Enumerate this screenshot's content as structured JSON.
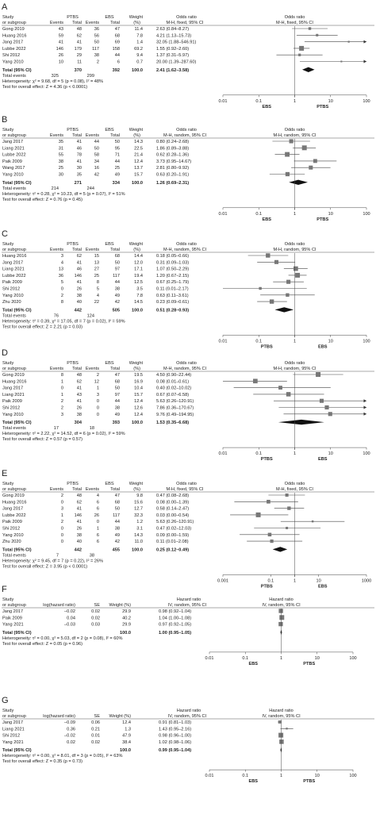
{
  "chart_data": [
    {
      "type": "forest",
      "panel": "A",
      "title": "",
      "col_study": [
        "Study",
        "or subgroup"
      ],
      "group1": "PTBS",
      "group2": "EBS",
      "col_events": "Events",
      "col_total": "Total",
      "col_weight": [
        "Weight",
        "(%)"
      ],
      "effect_head": [
        "Odds ratio",
        "M-H, fixed, 95% CI"
      ],
      "plot_head": [
        "Odds ratio",
        "M-H, fixed, 95% CI"
      ],
      "studies": [
        {
          "name": "Gong 2019",
          "e1": "43",
          "n1": "48",
          "e2": "36",
          "n2": "47",
          "w": "11.4",
          "ci": "2.63 (0.84–8.27)",
          "or": 2.63,
          "lo": 0.84,
          "hi": 8.27
        },
        {
          "name": "Huang 2016",
          "e1": "59",
          "n1": "62",
          "e2": "56",
          "n2": "68",
          "w": "7.8",
          "ci": "4.21 (1.13–15.73)",
          "or": 4.21,
          "lo": 1.13,
          "hi": 15.73
        },
        {
          "name": "Jang 2017",
          "e1": "41",
          "n1": "41",
          "e2": "50",
          "n2": "69",
          "w": "1.4",
          "ci": "32.05 (1.88–546.91)",
          "or": 32.05,
          "lo": 1.88,
          "hi": 546.91
        },
        {
          "name": "Lubbe 2022",
          "e1": "146",
          "n1": "179",
          "e2": "117",
          "n2": "158",
          "w": "69.2",
          "ci": "1.55 (0.92–2.60)",
          "or": 1.55,
          "lo": 0.92,
          "hi": 2.6
        },
        {
          "name": "Shi 2012",
          "e1": "26",
          "n1": "29",
          "e2": "38",
          "n2": "44",
          "w": "9.4",
          "ci": "1.37 (0.31–5.97)",
          "or": 1.37,
          "lo": 0.31,
          "hi": 5.97
        },
        {
          "name": "Yang 2010",
          "e1": "10",
          "n1": "11",
          "e2": "2",
          "n2": "6",
          "w": "0.7",
          "ci": "20.00 (1.39–287.60)",
          "or": 20.0,
          "lo": 1.39,
          "hi": 287.6
        }
      ],
      "total": {
        "label": "Total (95% CI)",
        "n1": "370",
        "n2": "392",
        "w": "100.0",
        "ci": "2.41 (1.62–3.58)",
        "or": 2.41,
        "lo": 1.62,
        "hi": 3.58
      },
      "total_events": {
        "label": "Total events",
        "e1": "325",
        "e2": "299"
      },
      "heterogeneity": "Heterogeneity: χ² = 9.68, df = 5 (p = 0.08), I² = 48%",
      "overall": "Test for overall effect: Z = 4.36 (p < 0.0001)",
      "ticks": [
        "0.01",
        "0.1",
        "1",
        "10",
        "100"
      ],
      "tick_values": [
        0.01,
        0.1,
        1,
        10,
        100
      ],
      "favours_left": "EBS",
      "favours_right": "PTBS"
    },
    {
      "type": "forest",
      "panel": "B",
      "title": "",
      "col_study": [
        "Study",
        "or subgroup"
      ],
      "group1": "PTBS",
      "group2": "EBS",
      "col_events": "Events",
      "col_total": "Total",
      "col_weight": [
        "Weight",
        "(%)"
      ],
      "effect_head": [
        "Odds ratio",
        "M-H, random, 95% CI"
      ],
      "plot_head": [
        "Odds ratio",
        "M-H, random, 95% CI"
      ],
      "studies": [
        {
          "name": "Jang 2017",
          "e1": "35",
          "n1": "41",
          "e2": "44",
          "n2": "50",
          "w": "14.3",
          "ci": "0.80 (0.24–2.68)",
          "or": 0.8,
          "lo": 0.24,
          "hi": 2.68
        },
        {
          "name": "Liang 2021",
          "e1": "31",
          "n1": "46",
          "e2": "50",
          "n2": "95",
          "w": "22.5",
          "ci": "1.86 (0.89–3.88)",
          "or": 1.86,
          "lo": 0.89,
          "hi": 3.88
        },
        {
          "name": "Lubbe 2022",
          "e1": "55",
          "n1": "78",
          "e2": "58",
          "n2": "71",
          "w": "21.4",
          "ci": "0.62 (0.28–1.36)",
          "or": 0.62,
          "lo": 0.28,
          "hi": 1.36
        },
        {
          "name": "Paik 2009",
          "e1": "38",
          "n1": "41",
          "e2": "34",
          "n2": "44",
          "w": "12.4",
          "ci": "3.73 (0.95–14.67)",
          "or": 3.73,
          "lo": 0.95,
          "hi": 14.67
        },
        {
          "name": "Wang 2017",
          "e1": "25",
          "n1": "30",
          "e2": "16",
          "n2": "25",
          "w": "13.7",
          "ci": "2.81 (0.80–9.92)",
          "or": 2.81,
          "lo": 0.8,
          "hi": 9.92
        },
        {
          "name": "Yang 2010",
          "e1": "30",
          "n1": "35",
          "e2": "42",
          "n2": "49",
          "w": "15.7",
          "ci": "0.63 (0.20–1.91)",
          "or": 0.63,
          "lo": 0.2,
          "hi": 1.91
        }
      ],
      "total": {
        "label": "Total (95% CI)",
        "n1": "271",
        "n2": "334",
        "w": "100.0",
        "ci": "1.26 (0.69–2.31)",
        "or": 1.26,
        "lo": 0.69,
        "hi": 2.31
      },
      "total_events": {
        "label": "Total events",
        "e1": "214",
        "e2": "244"
      },
      "heterogeneity": "Heterogeneity: τ² = 0.28, χ² = 10.23, df = 5 (p = 0.07), I² = 51%",
      "overall": "Test for overall effect: Z = 0.76 (p = 0.45)",
      "ticks": [
        "0.01",
        "0.1",
        "1",
        "10",
        "100"
      ],
      "tick_values": [
        0.01,
        0.1,
        1,
        10,
        100
      ],
      "favours_left": "EBS",
      "favours_right": "PTBS"
    },
    {
      "type": "forest",
      "panel": "C",
      "title": "",
      "col_study": [
        "Study",
        "or subgroup"
      ],
      "group1": "PTBS",
      "group2": "EBS",
      "col_events": "Events",
      "col_total": "Total",
      "col_weight": [
        "Weight",
        "(%)"
      ],
      "effect_head": [
        "Odds ratio",
        "M-H, random, 95% CI"
      ],
      "plot_head": [
        "Odds ratio",
        "M-H, random, 95% CI"
      ],
      "studies": [
        {
          "name": "Huang 2016",
          "e1": "3",
          "n1": "62",
          "e2": "15",
          "n2": "68",
          "w": "14.4",
          "ci": "0.18 (0.05–0.66)",
          "or": 0.18,
          "lo": 0.05,
          "hi": 0.66
        },
        {
          "name": "Jang 2017",
          "e1": "4",
          "n1": "41",
          "e2": "13",
          "n2": "50",
          "w": "12.0",
          "ci": "0.31 (0.09–1.03)",
          "or": 0.31,
          "lo": 0.09,
          "hi": 1.03
        },
        {
          "name": "Liang 2021",
          "e1": "13",
          "n1": "46",
          "e2": "27",
          "n2": "97",
          "w": "17.1",
          "ci": "1.07 (0.50–2.29)",
          "or": 1.07,
          "lo": 0.5,
          "hi": 2.29
        },
        {
          "name": "Lubbe 2022",
          "e1": "36",
          "n1": "146",
          "e2": "25",
          "n2": "117",
          "w": "19.4",
          "ci": "1.20 (0.67–2.15)",
          "or": 1.2,
          "lo": 0.67,
          "hi": 2.15
        },
        {
          "name": "Paik 2009",
          "e1": "5",
          "n1": "41",
          "e2": "8",
          "n2": "44",
          "w": "12.5",
          "ci": "0.67 (0.25–1.79)",
          "or": 0.67,
          "lo": 0.25,
          "hi": 1.79
        },
        {
          "name": "Shi 2012",
          "e1": "0",
          "n1": "26",
          "e2": "5",
          "n2": "38",
          "w": "3.5",
          "ci": "0.11 (0.01–2.17)",
          "or": 0.11,
          "lo": 0.01,
          "hi": 2.17
        },
        {
          "name": "Yang 2010",
          "e1": "2",
          "n1": "38",
          "e2": "4",
          "n2": "49",
          "w": "7.8",
          "ci": "0.63 (0.11–3.61)",
          "or": 0.63,
          "lo": 0.11,
          "hi": 3.61
        },
        {
          "name": "Zhu 2020",
          "e1": "8",
          "n1": "40",
          "e2": "22",
          "n2": "42",
          "w": "14.5",
          "ci": "0.23 (0.09–0.61)",
          "or": 0.23,
          "lo": 0.09,
          "hi": 0.61
        }
      ],
      "total": {
        "label": "Total (95% CI)",
        "n1": "442",
        "n2": "505",
        "w": "100.0",
        "ci": "0.51 (0.28–0.93)",
        "or": 0.51,
        "lo": 0.28,
        "hi": 0.93
      },
      "total_events": {
        "label": "Total events",
        "e1": "76",
        "e2": "124"
      },
      "heterogeneity": "Heterogeneity: τ² = 0.39, χ² = 17.05, df = 7 (p = 0.02), I² = 59%",
      "overall": "Test for overall effect: Z = 2.21 (p = 0.03)",
      "ticks": [
        "0.01",
        "0.1",
        "1",
        "10",
        "100"
      ],
      "tick_values": [
        0.01,
        0.1,
        1,
        10,
        100
      ],
      "favours_left": "PTBS",
      "favours_right": "EBS"
    },
    {
      "type": "forest",
      "panel": "D",
      "title": "",
      "col_study": [
        "Study",
        "or subgroup"
      ],
      "group1": "PTBS",
      "group2": "EBS",
      "col_events": "Events",
      "col_total": "Total",
      "col_weight": [
        "Weight",
        "(%)"
      ],
      "effect_head": [
        "Odds ratio",
        "M-H, random, 95% CI"
      ],
      "plot_head": [
        "Odds ratio",
        "M-H, random, 95% CI"
      ],
      "studies": [
        {
          "name": "Gong 2019",
          "e1": "8",
          "n1": "48",
          "e2": "2",
          "n2": "47",
          "w": "19.5",
          "ci": "4.50 (0.90–22.44)",
          "or": 4.5,
          "lo": 0.9,
          "hi": 22.44
        },
        {
          "name": "Huang 2016",
          "e1": "1",
          "n1": "62",
          "e2": "12",
          "n2": "68",
          "w": "16.9",
          "ci": "0.08 (0.01–0.61)",
          "or": 0.08,
          "lo": 0.01,
          "hi": 0.61
        },
        {
          "name": "Jang 2017",
          "e1": "0",
          "n1": "41",
          "e2": "1",
          "n2": "50",
          "w": "10.4",
          "ci": "0.40 (0.02–10.02)",
          "or": 0.4,
          "lo": 0.02,
          "hi": 10.02
        },
        {
          "name": "Liang 2021",
          "e1": "1",
          "n1": "43",
          "e2": "3",
          "n2": "97",
          "w": "15.7",
          "ci": "0.67 (0.07–6.58)",
          "or": 0.67,
          "lo": 0.07,
          "hi": 6.58
        },
        {
          "name": "Paik 2009",
          "e1": "2",
          "n1": "41",
          "e2": "0",
          "n2": "44",
          "w": "12.4",
          "ci": "5.63 (0.26–120.91)",
          "or": 5.63,
          "lo": 0.26,
          "hi": 120.91
        },
        {
          "name": "Shi 2012",
          "e1": "2",
          "n1": "26",
          "e2": "0",
          "n2": "38",
          "w": "12.6",
          "ci": "7.86 (0.36–170.67)",
          "or": 7.86,
          "lo": 0.36,
          "hi": 170.67
        },
        {
          "name": "Yang 2010",
          "e1": "3",
          "n1": "38",
          "e2": "0",
          "n2": "49",
          "w": "12.4",
          "ci": "9.76 (0.49–194.95)",
          "or": 9.76,
          "lo": 0.49,
          "hi": 194.95
        }
      ],
      "total": {
        "label": "Total (95% CI)",
        "n1": "304",
        "n2": "393",
        "w": "100.0",
        "ci": "1.53 (0.35–6.68)",
        "or": 1.53,
        "lo": 0.35,
        "hi": 6.68
      },
      "total_events": {
        "label": "Total events",
        "e1": "17",
        "e2": "18"
      },
      "heterogeneity": "Heterogeneity: τ² = 2.22, χ² = 14.52, df = 6 (p = 0.02), I² = 59%",
      "overall": "Test for overall effect: Z = 0.57 (p = 0.57)",
      "ticks": [
        "0.01",
        "0.1",
        "1",
        "10",
        "100"
      ],
      "tick_values": [
        0.01,
        0.1,
        1,
        10,
        100
      ],
      "favours_left": "PTBS",
      "favours_right": "EBS"
    },
    {
      "type": "forest",
      "panel": "E",
      "title": "",
      "col_study": [
        "Study",
        "or subgroup"
      ],
      "group1": "PTBS",
      "group2": "EBS",
      "col_events": "Events",
      "col_total": "Total",
      "col_weight": [
        "Weight",
        "(%)"
      ],
      "effect_head": [
        "Odds ratio",
        "M-H, fixed, 95% CI"
      ],
      "plot_head": [
        "Odds ratio",
        "M-H, fixed, 95% CI"
      ],
      "studies": [
        {
          "name": "Gong 2019",
          "e1": "2",
          "n1": "48",
          "e2": "4",
          "n2": "47",
          "w": "9.8",
          "ci": "0.47 (0.08–2.68)",
          "or": 0.47,
          "lo": 0.08,
          "hi": 2.68
        },
        {
          "name": "Huang 2016",
          "e1": "0",
          "n1": "62",
          "e2": "6",
          "n2": "68",
          "w": "15.6",
          "ci": "0.08 (0.00–1.39)",
          "or": 0.08,
          "lo": 0.003,
          "hi": 1.39
        },
        {
          "name": "Jang 2017",
          "e1": "3",
          "n1": "41",
          "e2": "6",
          "n2": "50",
          "w": "12.7",
          "ci": "0.58 (0.14–2.47)",
          "or": 0.58,
          "lo": 0.14,
          "hi": 2.47
        },
        {
          "name": "Lubbe 2022",
          "e1": "1",
          "n1": "146",
          "e2": "26",
          "n2": "117",
          "w": "32.3",
          "ci": "0.03 (0.00–0.54)",
          "or": 0.03,
          "lo": 0.002,
          "hi": 0.54
        },
        {
          "name": "Paik 2009",
          "e1": "2",
          "n1": "41",
          "e2": "0",
          "n2": "44",
          "w": "1.2",
          "ci": "5.63 (0.26–120.91)",
          "or": 5.63,
          "lo": 0.26,
          "hi": 120.91
        },
        {
          "name": "Shi 2012",
          "e1": "0",
          "n1": "26",
          "e2": "1",
          "n2": "38",
          "w": "3.1",
          "ci": "0.47 (0.02–12.03)",
          "or": 0.47,
          "lo": 0.02,
          "hi": 12.03
        },
        {
          "name": "Yang 2010",
          "e1": "0",
          "n1": "38",
          "e2": "6",
          "n2": "49",
          "w": "14.3",
          "ci": "0.09 (0.00–1.59)",
          "or": 0.09,
          "lo": 0.005,
          "hi": 1.59
        },
        {
          "name": "Zhu 2020",
          "e1": "0",
          "n1": "40",
          "e2": "6",
          "n2": "42",
          "w": "11.0",
          "ci": "0.11 (0.01–2.08)",
          "or": 0.11,
          "lo": 0.01,
          "hi": 2.08
        }
      ],
      "total": {
        "label": "Total (95% CI)",
        "n1": "442",
        "n2": "455",
        "w": "100.0",
        "ci": "0.25 (0.12–0.49)",
        "or": 0.25,
        "lo": 0.12,
        "hi": 0.49
      },
      "total_events": {
        "label": "Total events",
        "e1": "7",
        "e2": "38"
      },
      "heterogeneity": "Heterogeneity: χ² = 9.45, df = 7 (p = 0.22), I² = 26%",
      "overall": "Test for overall effect: Z = 3.95 (p < 0.0001)",
      "ticks": [
        "0.001",
        "0.1",
        "1",
        "10",
        "1000"
      ],
      "tick_values": [
        0.001,
        0.1,
        1,
        10,
        1000
      ],
      "favours_left": "PTBS",
      "favours_right": "EBS"
    },
    {
      "type": "forest-hr",
      "panel": "F",
      "title": "",
      "col_study": [
        "Study",
        "or subgroup"
      ],
      "col_loghr": "log(hazard ratio)",
      "col_se": "SE",
      "col_weight": "Weight (%)",
      "effect_head": [
        "Hazard ratio",
        "IV, random, 95% CI"
      ],
      "plot_head": [
        "Hazard ratio",
        "IV, random, 95% CI"
      ],
      "studies": [
        {
          "name": "Jang 2017",
          "loghr": "–0.02",
          "se": "0.02",
          "w": "29.9",
          "ci": "0.98 (0.92–1.04)",
          "or": 0.98,
          "lo": 0.92,
          "hi": 1.04
        },
        {
          "name": "Paik 2009",
          "loghr": "0.04",
          "se": "0.02",
          "w": "40.2",
          "ci": "1.04 (1.00–1.08)",
          "or": 1.04,
          "lo": 1.0,
          "hi": 1.08
        },
        {
          "name": "Yang 2021",
          "loghr": "–0.03",
          "se": "0.03",
          "w": "29.9",
          "ci": "0.97 (0.92–1.05)",
          "or": 0.97,
          "lo": 0.92,
          "hi": 1.05
        }
      ],
      "total": {
        "label": "Total (95% CI)",
        "w": "100.0",
        "ci": "1.00 (0.95–1.05)",
        "or": 1.0,
        "lo": 0.95,
        "hi": 1.05
      },
      "heterogeneity": "Heterogeneity: τ² = 0.00, χ² = 5.03, df = 2 (p = 0.08), I² = 60%",
      "overall": "Test for overall effect: Z = 0.05 (p = 0.96)",
      "ticks": [
        "0.01",
        "0.1",
        "1",
        "10",
        "100"
      ],
      "tick_values": [
        0.01,
        0.1,
        1,
        10,
        100
      ],
      "favours_left": "EBS",
      "favours_right": "PTBS"
    },
    {
      "type": "forest-hr",
      "panel": "G",
      "title": "",
      "col_study": [
        "Study",
        "or subgroup"
      ],
      "col_loghr": "log(hazard ratio)",
      "col_se": "SE",
      "col_weight": "Weight (%)",
      "effect_head": [
        "Hazard ratio",
        "IV, random, 95% CI"
      ],
      "plot_head": [
        "Hazard ratio",
        "IV, random, 95% CI"
      ],
      "studies": [
        {
          "name": "Jang 2017",
          "loghr": "–0.09",
          "se": "0.06",
          "w": "12.4",
          "ci": "0.91 (0.81–1.03)",
          "or": 0.91,
          "lo": 0.81,
          "hi": 1.03
        },
        {
          "name": "Liang 2021",
          "loghr": "0.36",
          "se": "0.21",
          "w": "1.3",
          "ci": "1.43 (0.95–2.16)",
          "or": 1.43,
          "lo": 0.95,
          "hi": 2.16
        },
        {
          "name": "Shi 2012",
          "loghr": "–0.02",
          "se": "0.01",
          "w": "47.9",
          "ci": "0.98 (0.96–1.00)",
          "or": 0.98,
          "lo": 0.96,
          "hi": 1.0
        },
        {
          "name": "Yang 2021",
          "loghr": "0.02",
          "se": "0.02",
          "w": "38.4",
          "ci": "1.02 (0.98–1.06)",
          "or": 1.02,
          "lo": 0.98,
          "hi": 1.06
        }
      ],
      "total": {
        "label": "Total (95% CI)",
        "w": "100.0",
        "ci": "0.99 (0.95–1.04)",
        "or": 0.99,
        "lo": 0.95,
        "hi": 1.04
      },
      "heterogeneity": "Heterogeneity: τ² = 0.00, χ² = 8.01, df = 3 (p = 0.05), I² = 63%",
      "overall": "Test for overall effect: Z = 0.35 (p = 0.73)",
      "ticks": [
        "0.01",
        "0.1",
        "1",
        "10",
        "100"
      ],
      "tick_values": [
        0.01,
        0.1,
        1,
        10,
        100
      ],
      "favours_left": "EBS",
      "favours_right": "PTBS"
    }
  ]
}
